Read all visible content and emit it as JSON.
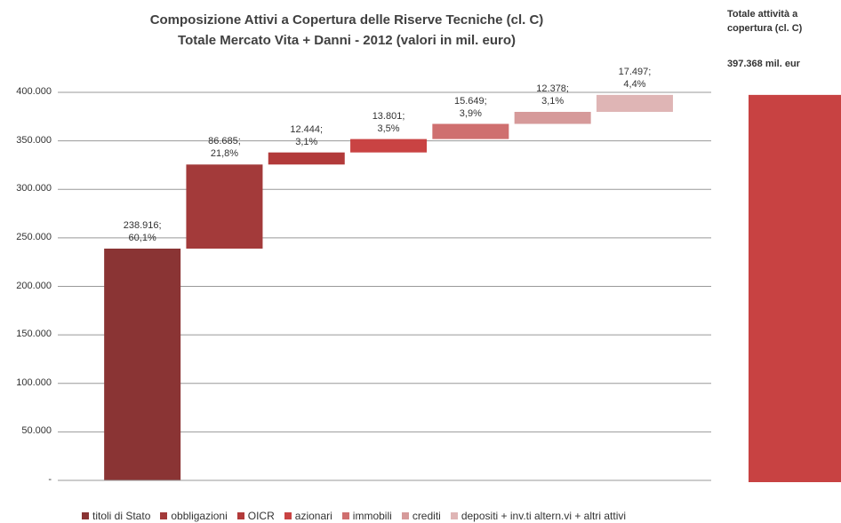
{
  "chart_data": {
    "type": "waterfall",
    "title": "Composizione  Attivi a Copertura  delle Riserve Tecniche  (cl. C)",
    "subtitle": "Totale Mercato Vita + Danni  - 2012 (valori in mil. euro)",
    "categories": [
      "titoli di Stato",
      "obbligazioni",
      "OICR",
      "azionari",
      "immobili",
      "crediti",
      "depositi + inv.ti altern.vi + altri attivi"
    ],
    "values": [
      238916,
      86685,
      12444,
      13801,
      15649,
      12378,
      17497
    ],
    "value_labels": [
      "238.916;\n60,1%",
      "86.685;\n21,8%",
      "12.444;\n3,1%",
      "13.801;\n3,5%",
      "15.649;\n3,9%",
      "12.378;\n3,1%",
      "17.497;\n4,4%"
    ],
    "colors": [
      "#8a3434",
      "#a33a3a",
      "#b23a3a",
      "#c94343",
      "#cf6f6f",
      "#d69a9a",
      "#dfb5b5"
    ],
    "ylim": [
      0,
      400000
    ],
    "yticks": [
      {
        "value": 0,
        "label": "-"
      },
      {
        "value": 50000,
        "label": "50.000"
      },
      {
        "value": 100000,
        "label": "100.000"
      },
      {
        "value": 150000,
        "label": "150.000"
      },
      {
        "value": 200000,
        "label": "200.000"
      },
      {
        "value": 250000,
        "label": "250.000"
      },
      {
        "value": 300000,
        "label": "300.000"
      },
      {
        "value": 350000,
        "label": "350.000"
      },
      {
        "value": 400000,
        "label": "400.000"
      }
    ],
    "grid": true,
    "legend": "bottom",
    "total": {
      "label": "Totale attività a\ncopertura (cl. C)",
      "value": 397368,
      "value_label": "397.368 mil. eur",
      "color": "#c84242"
    }
  }
}
